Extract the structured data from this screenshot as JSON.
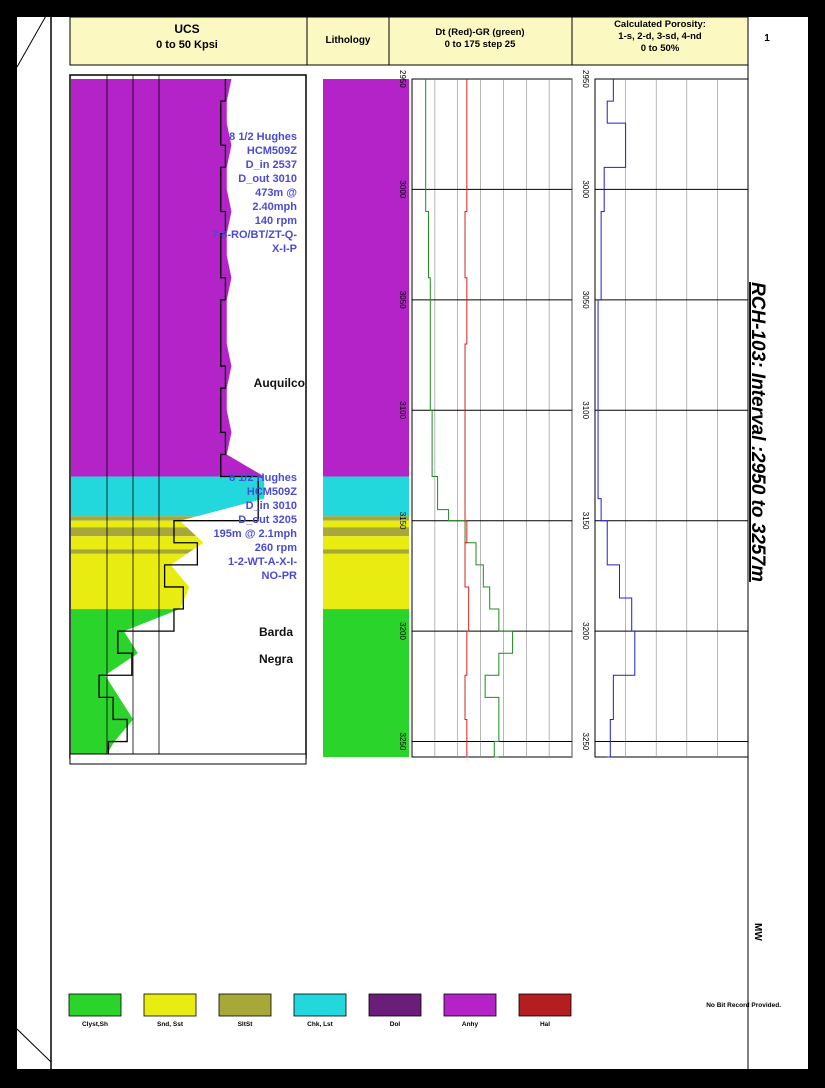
{
  "headers": {
    "ucs_line1": "UCS",
    "ucs_line2": "0 to 50 Kpsi",
    "lithology": "Lithology",
    "dt_line1": "Dt (Red)-GR (green)",
    "dt_line2": "0 to 175 step 25",
    "por_line1": "Calculated Porosity:",
    "por_line2": "1-s, 2-d, 3-sd, 4-nd",
    "por_line3": "0 to 50%",
    "track_no": "1"
  },
  "well_title": "RCH-103: Interval :2950 to 3257m",
  "mw_label": "MW",
  "bit_note": "No Bit Record Provided.",
  "formations": [
    "Auquilco",
    "Barda",
    "Negra"
  ],
  "bit_runs": [
    {
      "lines": [
        "8 1/2 Hughes",
        "HCM509Z",
        "D_in 2537",
        "D_out 3010",
        "473m @",
        "2.40mph",
        "140 rpm",
        "7-8-RO/BT/ZT-Q-",
        "X-I-P"
      ]
    },
    {
      "lines": [
        "8 1/2 Hughes",
        "HCM509Z",
        "D_in 3010",
        "D_out 3205",
        "195m @ 2.1mph",
        "260 rpm",
        "1-2-WT-A-X-I-",
        "NO-PR"
      ]
    }
  ],
  "legend": [
    {
      "label": "Clyst,Sh",
      "color": "#2bd42b"
    },
    {
      "label": "Snd, Sst",
      "color": "#e8ec10"
    },
    {
      "label": "SltSt",
      "color": "#a8a838"
    },
    {
      "label": "Chk, Lst",
      "color": "#22d8dc"
    },
    {
      "label": "Dol",
      "color": "#6a1e7a"
    },
    {
      "label": "Anhy",
      "color": "#b423c8"
    },
    {
      "label": "Hal",
      "color": "#b41e1e"
    }
  ],
  "chart_data": {
    "type": "line",
    "title": "RCH-103: Interval :2950 to 3257m",
    "depth_axis": {
      "min": 2950,
      "max": 3257,
      "ticks": [
        2950,
        3000,
        3050,
        3100,
        3150,
        3200,
        3250
      ],
      "unit": "m"
    },
    "lithology_intervals": [
      {
        "top": 2950,
        "base": 3130,
        "lith": "Anhy"
      },
      {
        "top": 3130,
        "base": 3148,
        "lith": "Chk, Lst"
      },
      {
        "top": 3148,
        "base": 3150,
        "lith": "SltSt"
      },
      {
        "top": 3150,
        "base": 3153,
        "lith": "Snd, Sst"
      },
      {
        "top": 3153,
        "base": 3157,
        "lith": "SltSt"
      },
      {
        "top": 3157,
        "base": 3163,
        "lith": "Snd, Sst"
      },
      {
        "top": 3163,
        "base": 3165,
        "lith": "SltSt"
      },
      {
        "top": 3165,
        "base": 3190,
        "lith": "Snd, Sst"
      },
      {
        "top": 3190,
        "base": 3257,
        "lith": "Clyst,Sh"
      }
    ],
    "series": [
      {
        "track": "UCS",
        "xlim": [
          0,
          50
        ],
        "color": "#000000",
        "depth": [
          2950,
          2960,
          2970,
          2980,
          2990,
          3000,
          3010,
          3020,
          3030,
          3040,
          3050,
          3060,
          3070,
          3080,
          3090,
          3100,
          3110,
          3120,
          3130,
          3140,
          3150,
          3160,
          3170,
          3180,
          3190,
          3200,
          3210,
          3220,
          3230,
          3240,
          3250,
          3257
        ],
        "values": [
          33,
          32,
          32,
          33,
          32,
          32,
          33,
          32,
          32,
          33,
          32,
          32,
          32,
          33,
          32,
          32,
          33,
          32,
          40,
          40,
          22,
          27,
          20,
          24,
          22,
          10,
          13,
          6,
          9,
          12,
          8,
          6
        ]
      },
      {
        "track": "Dt",
        "xlim": [
          0,
          175
        ],
        "color": "#d82020",
        "depth": [
          2950,
          2980,
          3010,
          3040,
          3070,
          3100,
          3130,
          3150,
          3160,
          3180,
          3200,
          3220,
          3240,
          3257
        ],
        "values": [
          60,
          60,
          58,
          60,
          58,
          58,
          58,
          60,
          58,
          62,
          60,
          58,
          60,
          62
        ]
      },
      {
        "track": "GR",
        "xlim": [
          0,
          175
        ],
        "color": "#1f8a1f",
        "depth": [
          2950,
          2980,
          3010,
          3040,
          3070,
          3100,
          3120,
          3130,
          3145,
          3150,
          3160,
          3170,
          3180,
          3190,
          3200,
          3210,
          3220,
          3230,
          3240,
          3250,
          3257
        ],
        "values": [
          15,
          15,
          18,
          20,
          20,
          22,
          22,
          28,
          40,
          58,
          70,
          78,
          85,
          95,
          110,
          95,
          80,
          95,
          95,
          90,
          95
        ]
      },
      {
        "track": "Porosity",
        "xlim": [
          0,
          50
        ],
        "color": "#2020cc",
        "depth": [
          2950,
          2960,
          2970,
          2990,
          3010,
          3050,
          3080,
          3100,
          3140,
          3150,
          3170,
          3185,
          3200,
          3220,
          3240,
          3257
        ],
        "values": [
          6,
          4,
          10,
          3,
          2,
          1,
          1,
          1,
          2,
          4,
          8,
          12,
          13,
          6,
          5,
          4
        ]
      }
    ]
  }
}
